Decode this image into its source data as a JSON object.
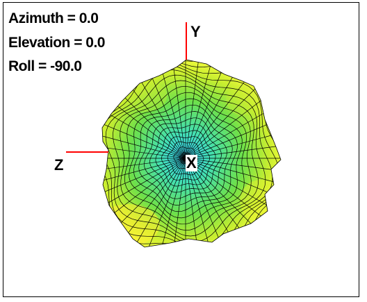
{
  "view": {
    "azimuth_text": "Azimuth = 0.0",
    "elevation_text": "Elevation = 0.0",
    "roll_text": "Roll = -90.0"
  },
  "axes": {
    "x_label": "X",
    "y_label": "Y",
    "z_label": "Z"
  },
  "colors": {
    "axis_line": "#ff0000",
    "mesh_line": "#000000",
    "surface_center": "#3ad8ff",
    "surface_mid": "#5ee05e",
    "surface_outer": "#ffff40"
  }
}
